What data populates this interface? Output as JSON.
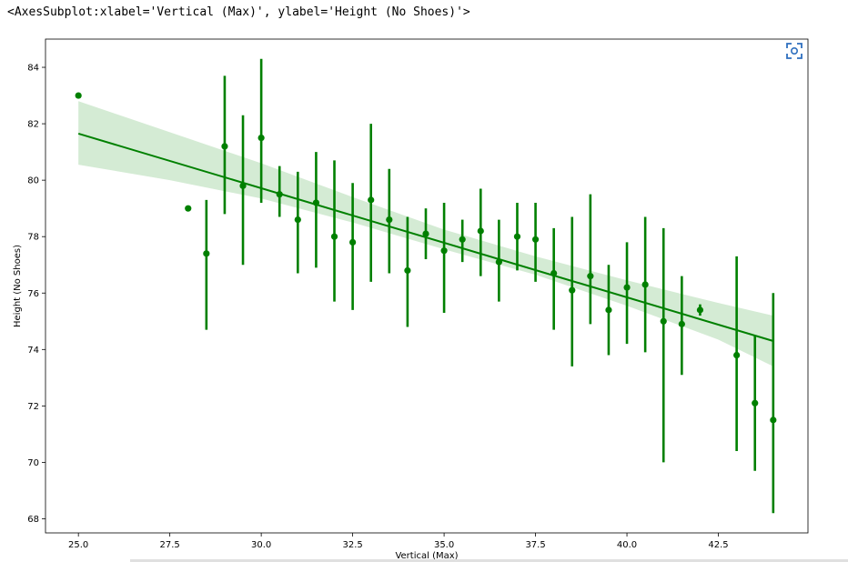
{
  "output_repr": "<AxesSubplot:xlabel='Vertical (Max)', ylabel='Height (No Shoes)'>",
  "icons": {
    "focus": "fullscreen-focus-icon"
  },
  "colors": {
    "series": "#008000",
    "band": "#d4ebd4"
  },
  "chart_data": {
    "type": "scatter",
    "xlabel": "Vertical (Max)",
    "ylabel": "Height (No Shoes)",
    "xlim": [
      24.1,
      44.95
    ],
    "ylim": [
      67.5,
      85.0
    ],
    "xticks": [
      25.0,
      27.5,
      30.0,
      32.5,
      35.0,
      37.5,
      40.0,
      42.5
    ],
    "xtick_labels": [
      "25.0",
      "27.5",
      "30.0",
      "32.5",
      "35.0",
      "37.5",
      "40.0",
      "42.5"
    ],
    "yticks": [
      68,
      70,
      72,
      74,
      76,
      78,
      80,
      82,
      84
    ],
    "ytick_labels": [
      "68",
      "70",
      "72",
      "74",
      "76",
      "78",
      "80",
      "82",
      "84"
    ],
    "grid": false,
    "series": [
      {
        "points": [
          {
            "x": 25.0,
            "y": 83.0,
            "lo": 83.0,
            "hi": 83.0
          },
          {
            "x": 28.0,
            "y": 79.0,
            "lo": 79.0,
            "hi": 79.0
          },
          {
            "x": 28.5,
            "y": 77.4,
            "lo": 74.7,
            "hi": 79.3
          },
          {
            "x": 29.0,
            "y": 81.2,
            "lo": 78.8,
            "hi": 83.7
          },
          {
            "x": 29.5,
            "y": 79.8,
            "lo": 77.0,
            "hi": 82.3
          },
          {
            "x": 30.0,
            "y": 81.5,
            "lo": 79.2,
            "hi": 84.3
          },
          {
            "x": 30.5,
            "y": 79.5,
            "lo": 78.7,
            "hi": 80.5
          },
          {
            "x": 31.0,
            "y": 78.6,
            "lo": 76.7,
            "hi": 80.3
          },
          {
            "x": 31.5,
            "y": 79.2,
            "lo": 76.9,
            "hi": 81.0
          },
          {
            "x": 32.0,
            "y": 78.0,
            "lo": 75.7,
            "hi": 80.7
          },
          {
            "x": 32.5,
            "y": 77.8,
            "lo": 75.4,
            "hi": 79.9
          },
          {
            "x": 33.0,
            "y": 79.3,
            "lo": 76.4,
            "hi": 82.0
          },
          {
            "x": 33.5,
            "y": 78.6,
            "lo": 76.7,
            "hi": 80.4
          },
          {
            "x": 34.0,
            "y": 76.8,
            "lo": 74.8,
            "hi": 78.7
          },
          {
            "x": 34.5,
            "y": 78.1,
            "lo": 77.2,
            "hi": 79.0
          },
          {
            "x": 35.0,
            "y": 77.5,
            "lo": 75.3,
            "hi": 79.2
          },
          {
            "x": 35.5,
            "y": 77.9,
            "lo": 77.1,
            "hi": 78.6
          },
          {
            "x": 36.0,
            "y": 78.2,
            "lo": 76.6,
            "hi": 79.7
          },
          {
            "x": 36.5,
            "y": 77.1,
            "lo": 75.7,
            "hi": 78.6
          },
          {
            "x": 37.0,
            "y": 78.0,
            "lo": 76.8,
            "hi": 79.2
          },
          {
            "x": 37.5,
            "y": 77.9,
            "lo": 76.4,
            "hi": 79.2
          },
          {
            "x": 38.0,
            "y": 76.7,
            "lo": 74.7,
            "hi": 78.3
          },
          {
            "x": 38.5,
            "y": 76.1,
            "lo": 73.4,
            "hi": 78.7
          },
          {
            "x": 39.0,
            "y": 76.6,
            "lo": 74.9,
            "hi": 79.5
          },
          {
            "x": 39.5,
            "y": 75.4,
            "lo": 73.8,
            "hi": 77.0
          },
          {
            "x": 40.0,
            "y": 76.2,
            "lo": 74.2,
            "hi": 77.8
          },
          {
            "x": 40.5,
            "y": 76.3,
            "lo": 73.9,
            "hi": 78.7
          },
          {
            "x": 41.0,
            "y": 75.0,
            "lo": 70.0,
            "hi": 78.3
          },
          {
            "x": 41.5,
            "y": 74.9,
            "lo": 73.1,
            "hi": 76.6
          },
          {
            "x": 42.0,
            "y": 75.4,
            "lo": 75.2,
            "hi": 75.6
          },
          {
            "x": 43.0,
            "y": 73.8,
            "lo": 70.4,
            "hi": 77.3
          },
          {
            "x": 43.5,
            "y": 72.1,
            "lo": 69.7,
            "hi": 74.5
          },
          {
            "x": 44.0,
            "y": 71.5,
            "lo": 68.2,
            "hi": 76.0
          }
        ]
      }
    ],
    "regression": {
      "x_start": 25.0,
      "y_start": 81.65,
      "x_end": 44.0,
      "y_end": 74.3,
      "ci": [
        {
          "x": 25.0,
          "lo": 80.55,
          "hi": 82.8
        },
        {
          "x": 27.5,
          "lo": 80.0,
          "hi": 81.7
        },
        {
          "x": 30.0,
          "lo": 79.35,
          "hi": 80.6
        },
        {
          "x": 32.5,
          "lo": 78.5,
          "hi": 79.4
        },
        {
          "x": 35.0,
          "lo": 77.55,
          "hi": 78.25
        },
        {
          "x": 37.5,
          "lo": 76.65,
          "hi": 77.3
        },
        {
          "x": 40.0,
          "lo": 75.55,
          "hi": 76.45
        },
        {
          "x": 42.5,
          "lo": 74.35,
          "hi": 75.65
        },
        {
          "x": 44.0,
          "lo": 73.4,
          "hi": 75.2
        }
      ]
    }
  }
}
